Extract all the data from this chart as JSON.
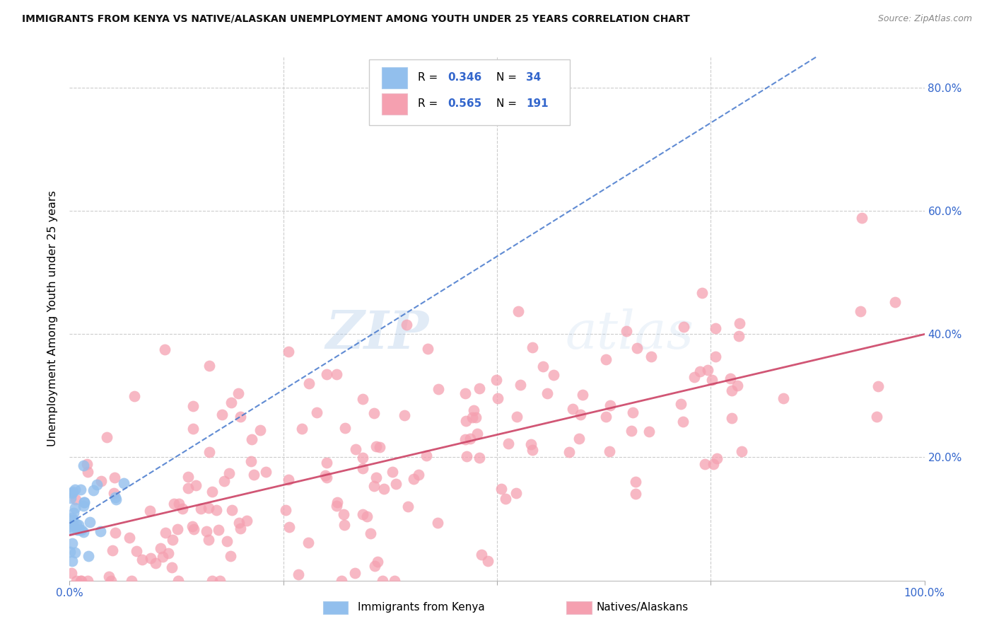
{
  "title": "IMMIGRANTS FROM KENYA VS NATIVE/ALASKAN UNEMPLOYMENT AMONG YOUTH UNDER 25 YEARS CORRELATION CHART",
  "source": "Source: ZipAtlas.com",
  "ylabel": "Unemployment Among Youth under 25 years",
  "xlim": [
    0.0,
    1.0
  ],
  "ylim": [
    0.0,
    0.85
  ],
  "ytick_positions": [
    0.2,
    0.4,
    0.6,
    0.8
  ],
  "yticklabels": [
    "20.0%",
    "40.0%",
    "60.0%",
    "80.0%"
  ],
  "kenya_R": 0.346,
  "kenya_N": 34,
  "native_R": 0.565,
  "native_N": 191,
  "kenya_color": "#92BFED",
  "native_color": "#F5A0B0",
  "kenya_trend_color": "#4477CC",
  "native_trend_color": "#CC4466",
  "watermark_zip": "ZIP",
  "watermark_atlas": "atlas",
  "background_color": "#ffffff",
  "grid_color": "#cccccc",
  "accent_color": "#3366CC",
  "kenya_seed": 42,
  "native_seed": 7,
  "legend_R1": "R = 0.346",
  "legend_N1": "N = 34",
  "legend_R2": "R = 0.565",
  "legend_N2": "N = 191",
  "bottom_label1": "Immigrants from Kenya",
  "bottom_label2": "Natives/Alaskans"
}
